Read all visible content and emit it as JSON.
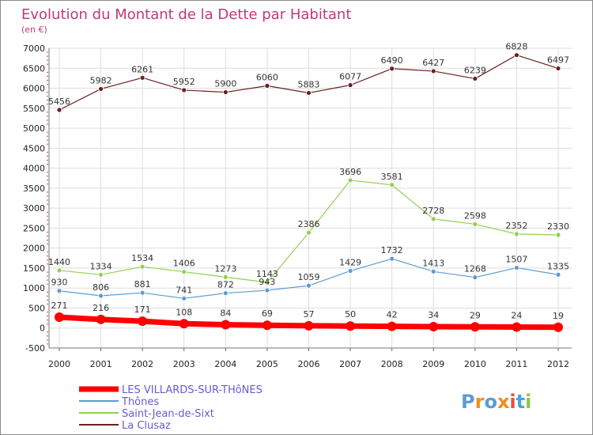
{
  "chart_data": {
    "type": "line",
    "title": "Evolution du Montant de la Dette par Habitant",
    "subtitle": "(en €)",
    "categories": [
      "2000",
      "2001",
      "2002",
      "2003",
      "2004",
      "2005",
      "2006",
      "2007",
      "2008",
      "2009",
      "2010",
      "2011",
      "2012"
    ],
    "ylim": [
      -500,
      7000
    ],
    "yticks": [
      -500,
      0,
      500,
      1000,
      1500,
      2000,
      2500,
      3000,
      3500,
      4000,
      4500,
      5000,
      5500,
      6000,
      6500,
      7000
    ],
    "grid": true,
    "legend_position": "bottom-left",
    "series": [
      {
        "name": "LES VILLARDS-SUR-THôNES",
        "color": "#ff0000",
        "values": [
          271,
          216,
          171,
          108,
          84,
          69,
          57,
          50,
          42,
          34,
          29,
          24,
          19
        ]
      },
      {
        "name": "Thônes",
        "color": "#5b9bd5",
        "values": [
          930,
          806,
          881,
          741,
          872,
          943,
          1059,
          1429,
          1732,
          1413,
          1268,
          1507,
          1335
        ]
      },
      {
        "name": "Saint-Jean-de-Sixt",
        "color": "#92d050",
        "values": [
          1440,
          1334,
          1534,
          1406,
          1273,
          1143,
          2386,
          3696,
          3581,
          2728,
          2598,
          2352,
          2330
        ]
      },
      {
        "name": "La Clusaz",
        "color": "#6b1e1e",
        "values": [
          5456,
          5982,
          6261,
          5952,
          5900,
          6060,
          5883,
          6077,
          6490,
          6427,
          6239,
          6828,
          6497
        ]
      }
    ]
  },
  "logo": {
    "text": "Proxiti",
    "colors": [
      "#5b9bd5",
      "#f08c1e",
      "#5b9bd5",
      "#f08c1e",
      "#e94d3a",
      "#4aa3df",
      "#8cc63f"
    ]
  }
}
